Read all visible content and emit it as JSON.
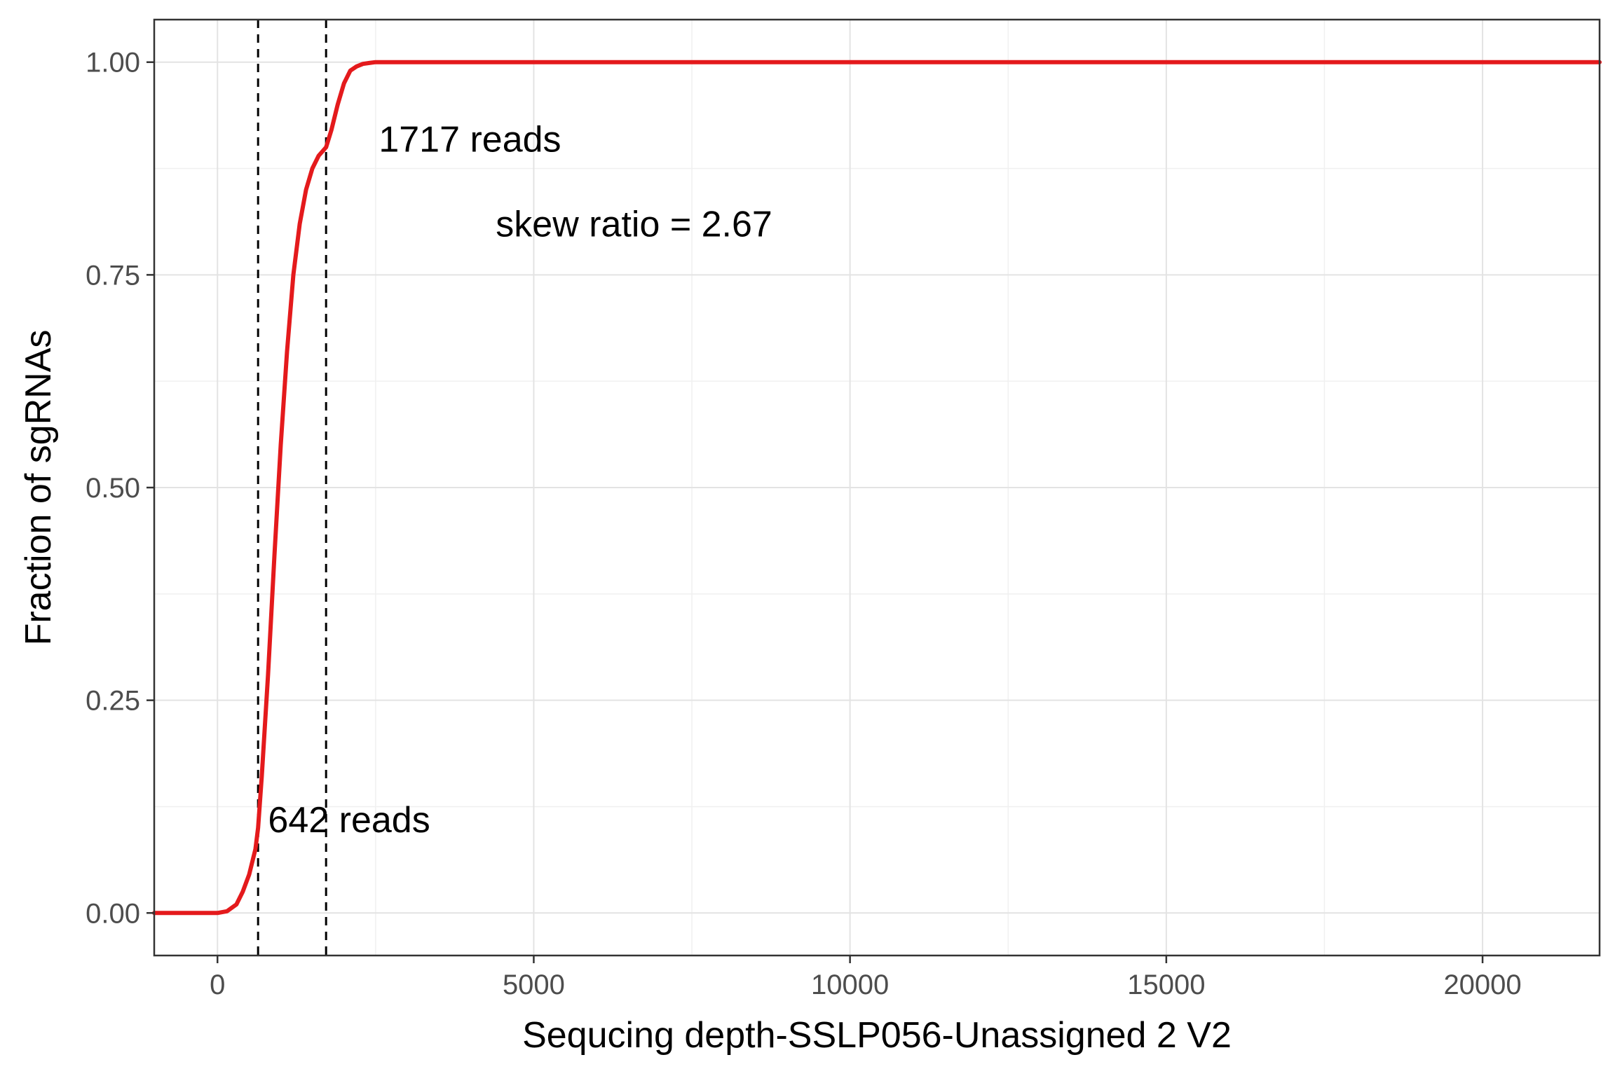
{
  "chart_data": {
    "type": "line",
    "title": "",
    "xlabel": "Sequcing depth-SSLP056-Unassigned 2 V2",
    "ylabel": "Fraction of sgRNAs",
    "xlim": [
      -1000,
      21850
    ],
    "ylim": [
      -0.05,
      1.05
    ],
    "x_ticks": [
      0,
      5000,
      10000,
      15000,
      20000
    ],
    "x_tick_labels": [
      "0",
      "5000",
      "10000",
      "15000",
      "20000"
    ],
    "y_ticks": [
      0,
      0.25,
      0.5,
      0.75,
      1.0
    ],
    "y_tick_labels": [
      "0.00",
      "0.25",
      "0.50",
      "0.75",
      "1.00"
    ],
    "grid": true,
    "series": [
      {
        "color": "#e41a1c",
        "x": [
          -1000,
          0,
          150,
          300,
          400,
          500,
          550,
          600,
          642,
          700,
          800,
          900,
          1000,
          1100,
          1200,
          1300,
          1400,
          1500,
          1600,
          1717,
          1800,
          1900,
          2000,
          2100,
          2200,
          2300,
          2400,
          2500,
          2700,
          3000,
          5000,
          10000,
          15000,
          20000,
          21850
        ],
        "y": [
          0,
          0,
          0.002,
          0.01,
          0.025,
          0.045,
          0.06,
          0.075,
          0.1,
          0.16,
          0.28,
          0.42,
          0.55,
          0.66,
          0.75,
          0.81,
          0.85,
          0.875,
          0.89,
          0.9,
          0.92,
          0.95,
          0.975,
          0.99,
          0.995,
          0.998,
          0.999,
          1.0,
          1.0,
          1.0,
          1.0,
          1.0,
          1.0,
          1.0,
          1.0
        ]
      }
    ],
    "vlines": [
      642,
      1717
    ],
    "annotations": [
      {
        "text": "1717 reads",
        "x": 2550,
        "y": 0.895
      },
      {
        "text": "skew ratio = 2.67",
        "x": 4400,
        "y": 0.795
      },
      {
        "text": "642 reads",
        "x": 800,
        "y": 0.095
      }
    ]
  }
}
